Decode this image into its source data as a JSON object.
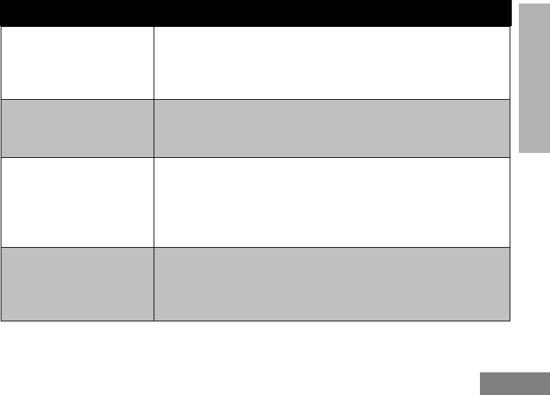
{
  "colors": {
    "header": "#000000",
    "shaded_row": "#c0c0c0",
    "side_tab": "#b3b3b3",
    "page_box": "#808080"
  },
  "header": {
    "title": ""
  },
  "rows": [
    {
      "shaded": false,
      "cells": [
        "",
        ""
      ]
    },
    {
      "shaded": true,
      "cells": [
        "",
        ""
      ]
    },
    {
      "shaded": false,
      "cells": [
        "",
        ""
      ]
    },
    {
      "shaded": true,
      "cells": [
        "",
        ""
      ]
    }
  ]
}
